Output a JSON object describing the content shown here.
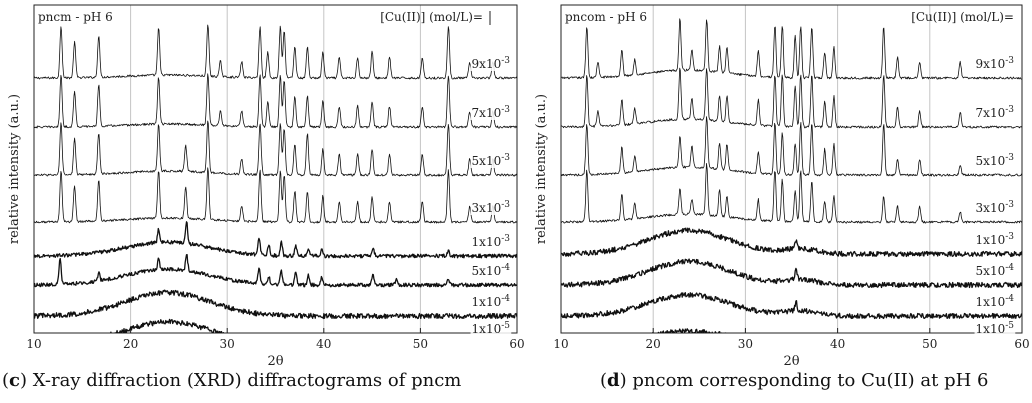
{
  "chart_data": [
    {
      "type": "line",
      "panel": "c",
      "title": "pncm - pH 6",
      "conc_label": "[Cu(II)] (mol/L)=",
      "xlabel": "2θ",
      "ylabel": "relative intensity (a.u.)",
      "xlim": [
        10,
        60
      ],
      "xticks": [
        10,
        20,
        30,
        40,
        50,
        60
      ],
      "grid": true,
      "series": [
        {
          "name": "9x10⁻³",
          "coef": "9x10",
          "exp": "-3",
          "kind": "crystalline",
          "hump": 0.15,
          "peaks": [
            [
              12.8,
              1.0
            ],
            [
              14.2,
              0.7
            ],
            [
              16.7,
              0.8
            ],
            [
              22.9,
              0.9
            ],
            [
              28.0,
              1.0
            ],
            [
              29.3,
              0.3
            ],
            [
              31.5,
              0.3
            ],
            [
              33.4,
              1.0
            ],
            [
              34.2,
              0.5
            ],
            [
              35.5,
              1.0
            ],
            [
              35.9,
              0.9
            ],
            [
              37.0,
              0.6
            ],
            [
              38.3,
              0.6
            ],
            [
              39.9,
              0.5
            ],
            [
              41.6,
              0.4
            ],
            [
              43.5,
              0.4
            ],
            [
              45.0,
              0.5
            ],
            [
              46.8,
              0.4
            ],
            [
              50.2,
              0.4
            ],
            [
              52.9,
              1.0
            ],
            [
              55.1,
              0.3
            ],
            [
              57.5,
              0.3
            ]
          ]
        },
        {
          "name": "7x10⁻³",
          "coef": "7x10",
          "exp": "-3",
          "kind": "crystalline",
          "hump": 0.15,
          "peaks": [
            [
              12.8,
              1.0
            ],
            [
              14.2,
              0.7
            ],
            [
              16.7,
              0.8
            ],
            [
              22.9,
              0.9
            ],
            [
              28.0,
              1.0
            ],
            [
              29.3,
              0.3
            ],
            [
              31.5,
              0.3
            ],
            [
              33.4,
              1.0
            ],
            [
              34.2,
              0.5
            ],
            [
              35.5,
              1.0
            ],
            [
              35.9,
              0.9
            ],
            [
              37.0,
              0.6
            ],
            [
              38.3,
              0.6
            ],
            [
              39.9,
              0.5
            ],
            [
              41.6,
              0.4
            ],
            [
              43.5,
              0.4
            ],
            [
              45.0,
              0.5
            ],
            [
              46.8,
              0.4
            ],
            [
              50.2,
              0.4
            ],
            [
              52.9,
              1.0
            ],
            [
              55.1,
              0.3
            ],
            [
              57.5,
              0.3
            ]
          ]
        },
        {
          "name": "5x10⁻³",
          "coef": "5x10",
          "exp": "-3",
          "kind": "crystalline",
          "hump": 0.2,
          "peaks": [
            [
              12.8,
              1.0
            ],
            [
              14.2,
              0.7
            ],
            [
              16.7,
              0.8
            ],
            [
              22.9,
              0.9
            ],
            [
              25.7,
              0.5
            ],
            [
              28.0,
              1.0
            ],
            [
              31.5,
              0.3
            ],
            [
              33.4,
              1.0
            ],
            [
              35.5,
              1.0
            ],
            [
              35.9,
              0.9
            ],
            [
              37.0,
              0.6
            ],
            [
              38.3,
              0.8
            ],
            [
              39.9,
              0.5
            ],
            [
              41.6,
              0.4
            ],
            [
              43.5,
              0.4
            ],
            [
              45.0,
              0.5
            ],
            [
              46.8,
              0.4
            ],
            [
              50.2,
              0.4
            ],
            [
              52.9,
              1.0
            ],
            [
              55.1,
              0.3
            ],
            [
              57.5,
              0.3
            ]
          ]
        },
        {
          "name": "3x10⁻³",
          "coef": "3x10",
          "exp": "-3",
          "kind": "crystalline",
          "hump": 0.2,
          "peaks": [
            [
              12.8,
              1.0
            ],
            [
              14.2,
              0.7
            ],
            [
              16.7,
              0.8
            ],
            [
              22.9,
              0.9
            ],
            [
              25.7,
              0.6
            ],
            [
              28.0,
              1.0
            ],
            [
              31.5,
              0.3
            ],
            [
              33.4,
              1.0
            ],
            [
              35.5,
              1.0
            ],
            [
              35.9,
              0.9
            ],
            [
              37.0,
              0.6
            ],
            [
              38.3,
              0.6
            ],
            [
              39.9,
              0.5
            ],
            [
              41.6,
              0.4
            ],
            [
              43.5,
              0.4
            ],
            [
              45.0,
              0.5
            ],
            [
              46.8,
              0.4
            ],
            [
              50.2,
              0.4
            ],
            [
              52.9,
              1.0
            ],
            [
              55.1,
              0.3
            ],
            [
              57.5,
              0.3
            ]
          ]
        },
        {
          "name": "1x10⁻³",
          "coef": "1x10",
          "exp": "-3",
          "kind": "mixed",
          "hump": 0.7,
          "peaks": [
            [
              22.9,
              0.5
            ],
            [
              25.8,
              0.8
            ],
            [
              33.3,
              0.6
            ],
            [
              34.3,
              0.4
            ],
            [
              35.6,
              0.5
            ],
            [
              37.1,
              0.4
            ],
            [
              38.4,
              0.3
            ],
            [
              39.8,
              0.3
            ],
            [
              45.1,
              0.3
            ],
            [
              52.9,
              0.2
            ]
          ]
        },
        {
          "name": "5x10⁻⁴",
          "coef": "5x10",
          "exp": "-4",
          "kind": "mixed",
          "hump": 0.8,
          "peaks": [
            [
              12.7,
              1.0
            ],
            [
              16.7,
              0.3
            ],
            [
              22.9,
              0.4
            ],
            [
              25.8,
              0.6
            ],
            [
              33.3,
              0.6
            ],
            [
              34.3,
              0.3
            ],
            [
              35.6,
              0.5
            ],
            [
              37.1,
              0.5
            ],
            [
              38.4,
              0.4
            ],
            [
              39.8,
              0.3
            ],
            [
              45.1,
              0.4
            ],
            [
              47.5,
              0.2
            ],
            [
              52.9,
              0.2
            ]
          ]
        },
        {
          "name": "1x10⁻⁴",
          "coef": "1x10",
          "exp": "-4",
          "kind": "amorphous",
          "hump": 1.0,
          "peaks": []
        },
        {
          "name": "1x10⁻⁵",
          "coef": "1x10",
          "exp": "-5",
          "kind": "amorphous",
          "hump": 0.9,
          "peaks": []
        }
      ]
    },
    {
      "type": "line",
      "panel": "d",
      "title": "pncom - pH 6",
      "conc_label": "[Cu(II)] (mol/L)=",
      "xlabel": "2θ",
      "ylabel": "relative intensity (a.u.)",
      "xlim": [
        10,
        60
      ],
      "xticks": [
        10,
        20,
        30,
        40,
        50,
        60
      ],
      "grid": true,
      "series": [
        {
          "name": "9x10⁻³",
          "coef": "9x10",
          "exp": "-3",
          "kind": "crystalline",
          "hump": 0.4,
          "peaks": [
            [
              12.8,
              1.0
            ],
            [
              14.0,
              0.3
            ],
            [
              16.6,
              0.5
            ],
            [
              18.0,
              0.3
            ],
            [
              22.9,
              1.0
            ],
            [
              24.2,
              0.4
            ],
            [
              25.8,
              1.0
            ],
            [
              27.2,
              0.5
            ],
            [
              28.0,
              0.5
            ],
            [
              31.4,
              0.5
            ],
            [
              33.2,
              1.0
            ],
            [
              34.0,
              1.0
            ],
            [
              35.4,
              0.8
            ],
            [
              36.0,
              1.0
            ],
            [
              37.2,
              1.0
            ],
            [
              38.6,
              0.5
            ],
            [
              39.6,
              0.6
            ],
            [
              45.0,
              1.0
            ],
            [
              46.5,
              0.4
            ],
            [
              48.9,
              0.3
            ],
            [
              53.3,
              0.3
            ]
          ]
        },
        {
          "name": "7x10⁻³",
          "coef": "7x10",
          "exp": "-3",
          "kind": "crystalline",
          "hump": 0.4,
          "peaks": [
            [
              12.8,
              1.0
            ],
            [
              14.0,
              0.3
            ],
            [
              16.6,
              0.5
            ],
            [
              18.0,
              0.3
            ],
            [
              22.9,
              1.0
            ],
            [
              24.2,
              0.4
            ],
            [
              25.8,
              1.0
            ],
            [
              27.2,
              0.5
            ],
            [
              28.0,
              0.5
            ],
            [
              31.4,
              0.5
            ],
            [
              33.2,
              1.0
            ],
            [
              34.0,
              1.0
            ],
            [
              35.4,
              0.8
            ],
            [
              36.0,
              1.0
            ],
            [
              37.2,
              1.0
            ],
            [
              38.6,
              0.5
            ],
            [
              39.6,
              0.6
            ],
            [
              45.0,
              1.0
            ],
            [
              46.5,
              0.4
            ],
            [
              48.9,
              0.3
            ],
            [
              53.3,
              0.3
            ]
          ]
        },
        {
          "name": "5x10⁻³",
          "coef": "5x10",
          "exp": "-3",
          "kind": "crystalline",
          "hump": 0.4,
          "peaks": [
            [
              12.8,
              1.0
            ],
            [
              16.6,
              0.5
            ],
            [
              18.0,
              0.3
            ],
            [
              22.9,
              0.6
            ],
            [
              24.2,
              0.4
            ],
            [
              25.8,
              1.0
            ],
            [
              27.2,
              0.5
            ],
            [
              28.0,
              0.5
            ],
            [
              31.4,
              0.4
            ],
            [
              33.2,
              1.0
            ],
            [
              34.0,
              0.8
            ],
            [
              35.4,
              0.6
            ],
            [
              36.0,
              1.0
            ],
            [
              37.2,
              1.0
            ],
            [
              38.6,
              0.5
            ],
            [
              39.6,
              0.6
            ],
            [
              45.0,
              1.0
            ],
            [
              46.5,
              0.3
            ],
            [
              48.9,
              0.3
            ],
            [
              53.3,
              0.2
            ]
          ]
        },
        {
          "name": "3x10⁻³",
          "coef": "3x10",
          "exp": "-3",
          "kind": "crystalline",
          "hump": 0.4,
          "peaks": [
            [
              12.8,
              1.0
            ],
            [
              16.6,
              0.5
            ],
            [
              18.0,
              0.3
            ],
            [
              22.9,
              0.5
            ],
            [
              24.2,
              0.3
            ],
            [
              25.8,
              1.0
            ],
            [
              27.2,
              0.5
            ],
            [
              28.0,
              0.4
            ],
            [
              31.4,
              0.4
            ],
            [
              33.2,
              1.0
            ],
            [
              34.0,
              0.8
            ],
            [
              35.4,
              0.6
            ],
            [
              36.0,
              1.0
            ],
            [
              37.2,
              0.8
            ],
            [
              38.6,
              0.4
            ],
            [
              39.6,
              0.5
            ],
            [
              45.0,
              0.5
            ],
            [
              46.5,
              0.3
            ],
            [
              48.9,
              0.3
            ],
            [
              53.3,
              0.2
            ]
          ]
        },
        {
          "name": "1x10⁻³",
          "coef": "1x10",
          "exp": "-3",
          "kind": "amorphous",
          "hump": 1.0,
          "peaks": [
            [
              35.5,
              0.3
            ]
          ]
        },
        {
          "name": "5x10⁻⁴",
          "coef": "5x10",
          "exp": "-4",
          "kind": "amorphous",
          "hump": 1.0,
          "peaks": [
            [
              35.5,
              0.35
            ]
          ]
        },
        {
          "name": "1x10⁻⁴",
          "coef": "1x10",
          "exp": "-4",
          "kind": "amorphous",
          "hump": 0.9,
          "peaks": [
            [
              35.5,
              0.35
            ]
          ]
        },
        {
          "name": "1x10⁻⁵",
          "coef": "1x10",
          "exp": "-5",
          "kind": "amorphous",
          "hump": 0.5,
          "peaks": []
        }
      ]
    }
  ],
  "captions": {
    "c": {
      "letter": "c",
      "text": " X-ray diffraction (XRD) diffractograms of pncm"
    },
    "d": {
      "letter": "d",
      "text": " pncom corresponding to Cu(II) at pH 6"
    }
  }
}
